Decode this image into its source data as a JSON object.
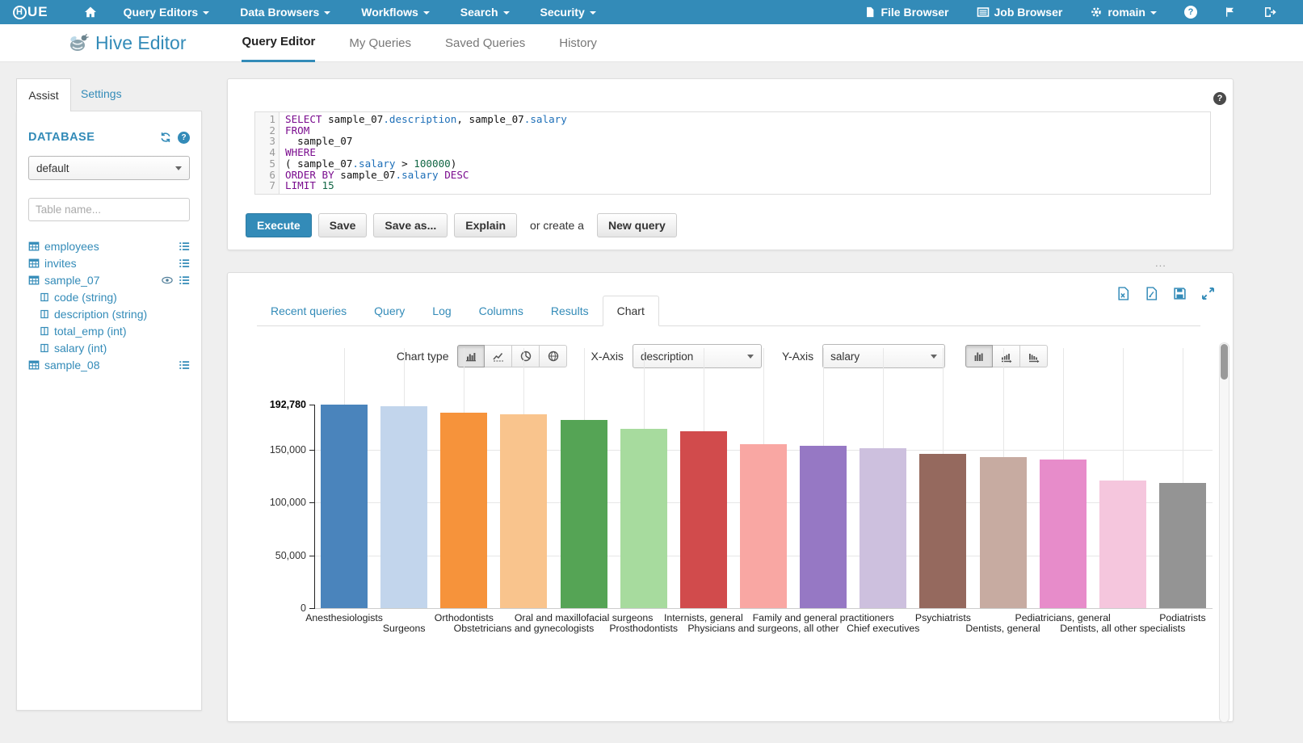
{
  "topnav": {
    "brand_first": "H",
    "brand_rest": "UE",
    "menus": [
      {
        "label": "Query Editors"
      },
      {
        "label": "Data Browsers"
      },
      {
        "label": "Workflows"
      },
      {
        "label": "Search"
      },
      {
        "label": "Security"
      }
    ],
    "file_browser": "File Browser",
    "job_browser": "Job Browser",
    "user": "romain",
    "help_glyph": "?"
  },
  "appheader": {
    "title": "Hive Editor",
    "tabs": [
      "Query Editor",
      "My Queries",
      "Saved Queries",
      "History"
    ],
    "active_tab": "Query Editor"
  },
  "assist": {
    "tab_assist": "Assist",
    "tab_settings": "Settings",
    "database_heading": "DATABASE",
    "database_value": "default",
    "table_filter_placeholder": "Table name...",
    "tables": [
      {
        "name": "employees"
      },
      {
        "name": "invites"
      },
      {
        "name": "sample_07",
        "columns": [
          "code (string)",
          "description (string)",
          "total_emp (int)",
          "salary (int)"
        ]
      },
      {
        "name": "sample_08"
      }
    ]
  },
  "editor": {
    "line_numbers": [
      "1",
      "2",
      "3",
      "4",
      "5",
      "6",
      "7"
    ],
    "lines": [
      [
        [
          "k",
          "SELECT"
        ],
        [
          "v",
          " sample_07"
        ],
        [
          "b",
          ".description"
        ],
        [
          "v",
          ", sample_07"
        ],
        [
          "b",
          ".salary"
        ]
      ],
      [
        [
          "k",
          "FROM"
        ]
      ],
      [
        [
          "v",
          "  sample_07"
        ]
      ],
      [
        [
          "k",
          "WHERE"
        ]
      ],
      [
        [
          "v",
          "( sample_07"
        ],
        [
          "b",
          ".salary"
        ],
        [
          "v",
          " > "
        ],
        [
          "n",
          "100000"
        ],
        [
          "v",
          ")"
        ]
      ],
      [
        [
          "k",
          "ORDER"
        ],
        [
          "v",
          " "
        ],
        [
          "k",
          "BY"
        ],
        [
          "v",
          " sample_07"
        ],
        [
          "b",
          ".salary"
        ],
        [
          "v",
          " "
        ],
        [
          "k",
          "DESC"
        ]
      ],
      [
        [
          "k",
          "LIMIT"
        ],
        [
          "v",
          " "
        ],
        [
          "n",
          "15"
        ]
      ]
    ]
  },
  "actions": {
    "execute": "Execute",
    "save": "Save",
    "save_as": "Save as...",
    "explain": "Explain",
    "or_create": "or create a",
    "new_query": "New query"
  },
  "panel_resize_dots": "...",
  "results": {
    "tabs": [
      "Recent queries",
      "Query",
      "Log",
      "Columns",
      "Results",
      "Chart"
    ],
    "active_tab": "Chart"
  },
  "chart_controls": {
    "chart_type_label": "Chart type",
    "x_axis_label": "X-Axis",
    "x_value": "description",
    "y_axis_label": "Y-Axis",
    "y_value": "salary"
  },
  "chart_data": {
    "type": "bar",
    "title": "",
    "xlabel": "description",
    "ylabel": "salary",
    "legend": "none",
    "grid": true,
    "ylim": [
      0,
      192780
    ],
    "yticks": [
      {
        "value": 0,
        "label": "0"
      },
      {
        "value": 50000,
        "label": "50,000"
      },
      {
        "value": 100000,
        "label": "100,000"
      },
      {
        "value": 150000,
        "label": "150,000"
      },
      {
        "value": 192780,
        "label": "192,780",
        "bold": true
      }
    ],
    "categories": [
      "Anesthesiologists",
      "Surgeons",
      "Orthodontists",
      "Obstetricians and gynecologists",
      "Oral and maxillofacial surgeons",
      "Prosthodontists",
      "Internists, general",
      "Physicians and surgeons, all other",
      "Family and general practitioners",
      "Chief executives",
      "Psychiatrists",
      "Dentists, general",
      "Pediatricians, general",
      "Dentists, all other specialists",
      "Podiatrists"
    ],
    "series": [
      {
        "name": "salary",
        "values": [
          192780,
          191410,
          185340,
          183600,
          178440,
          169810,
          167270,
          155150,
          153640,
          151370,
          146150,
          142870,
          140690,
          120590,
          118500
        ]
      }
    ],
    "bar_colors": [
      "#4a84bc",
      "#c2d5ec",
      "#f6933b",
      "#f9c48d",
      "#55a455",
      "#a7db9e",
      "#d14b4c",
      "#f9a7a3",
      "#9678c4",
      "#cdc0de",
      "#95695e",
      "#c7aba1",
      "#e78cca",
      "#f5c6dd",
      "#949494"
    ]
  }
}
